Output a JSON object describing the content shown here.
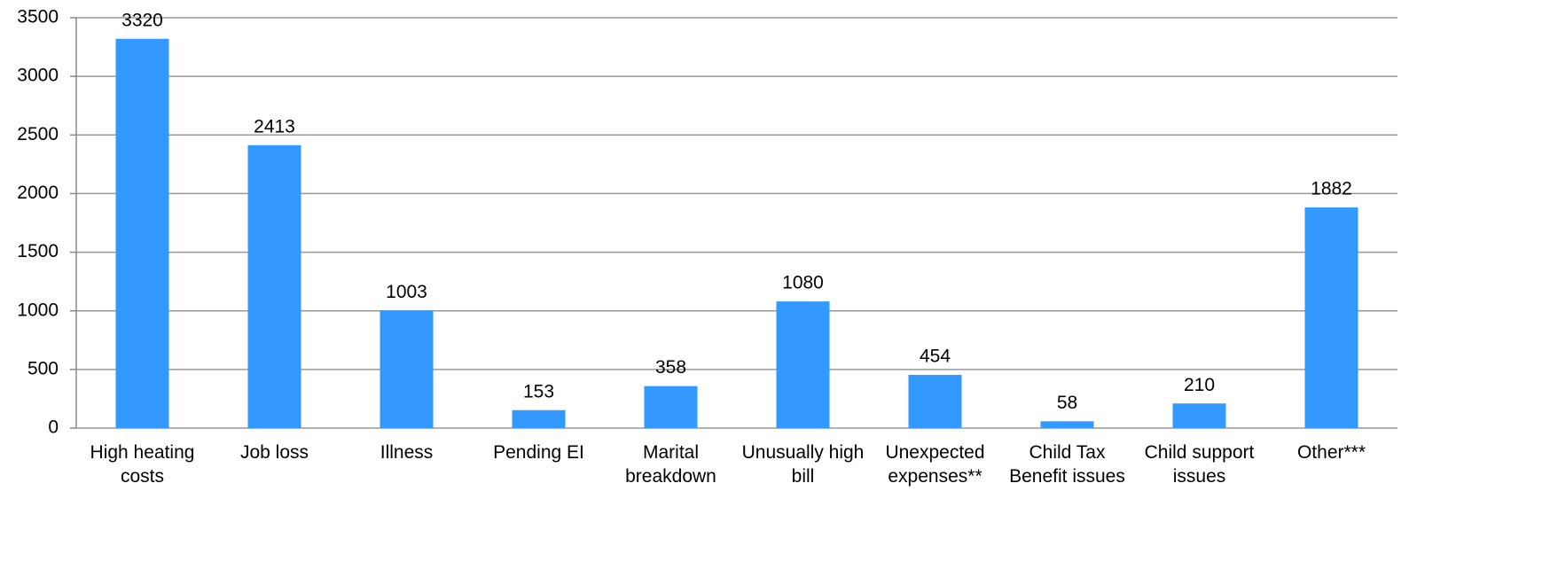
{
  "chart_data": {
    "type": "bar",
    "categories": [
      "High heating costs",
      "Job loss",
      "Illness",
      "Pending EI",
      "Marital breakdown",
      "Unusually high bill",
      "Unexpected expenses**",
      "Child Tax Benefit issues",
      "Child support issues",
      "Other***"
    ],
    "values": [
      3320,
      2413,
      1003,
      153,
      358,
      1080,
      454,
      58,
      210,
      1882
    ],
    "color": "#3399ff",
    "ylim": [
      0,
      3500
    ],
    "yticks": [
      0,
      500,
      1000,
      1500,
      2000,
      2500,
      3000,
      3500
    ],
    "grid": true
  }
}
